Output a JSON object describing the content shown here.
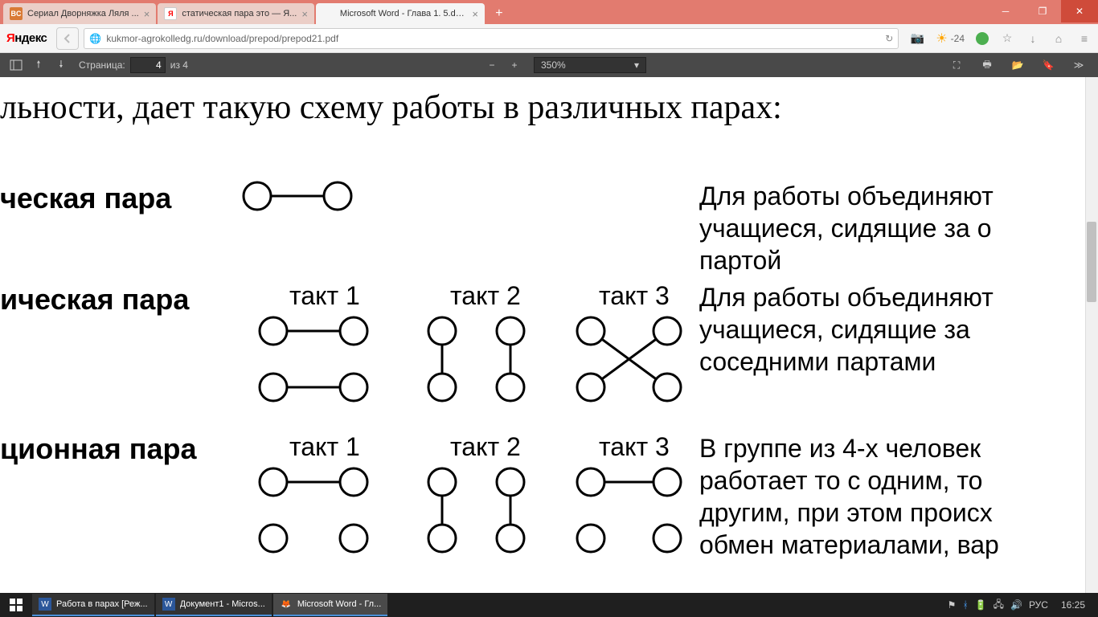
{
  "titlebar": {
    "tabs": [
      {
        "favicon_text": "BC",
        "favicon_bg": "#d97a35",
        "favicon_color": "#fff",
        "label": "Сериал Дворняжка Ляля ..."
      },
      {
        "favicon_text": "Я",
        "favicon_bg": "#fff",
        "favicon_color": "#ff0000",
        "label": "статическая пара это — Я..."
      },
      {
        "favicon_text": "",
        "favicon_bg": "transparent",
        "favicon_color": "#333",
        "label": "Microsoft Word - Глава 1. 5.do..."
      }
    ]
  },
  "addressbar": {
    "logo_y": "Я",
    "logo_rest": "ндекс",
    "url": "kukmor-agrokolledg.ru/download/prepod/prepod21.pdf",
    "weather_temp": "-24"
  },
  "pdf": {
    "page_label": "Страница:",
    "page_current": "4",
    "page_total": "из 4",
    "zoom": "350%"
  },
  "doc": {
    "heading": "льности, дает такую схему работы в различных парах:",
    "row1_label": "ческая пара",
    "row1_desc": "Для работы объединяют\nучащиеся, сидящие за о\nпартой",
    "row2_label": "ическая пара",
    "row2_desc": "Для работы объединяют\nучащиеся, сидящие за\nсоседними партами",
    "row3_label": "ционная пара",
    "row3_desc": "В группе из 4-х человек\nработает то с одним, то\nдругим, при этом происх\nобмен материалами, вар",
    "takt1": "такт 1",
    "takt2": "такт 2",
    "takt3": "такт 3",
    "circle_stroke": "#000000",
    "circle_fill": "#ffffff",
    "circle_r": 17,
    "line_width": 3
  },
  "taskbar": {
    "items": [
      {
        "icon": "W",
        "icon_bg": "#2b579a",
        "label": "Работа в парах [Реж..."
      },
      {
        "icon": "W",
        "icon_bg": "#2b579a",
        "label": "Документ1 - Micros..."
      },
      {
        "icon": "🦊",
        "icon_bg": "transparent",
        "label": "Microsoft Word - Гл..."
      }
    ],
    "lang": "РУС",
    "clock": "16:25"
  }
}
